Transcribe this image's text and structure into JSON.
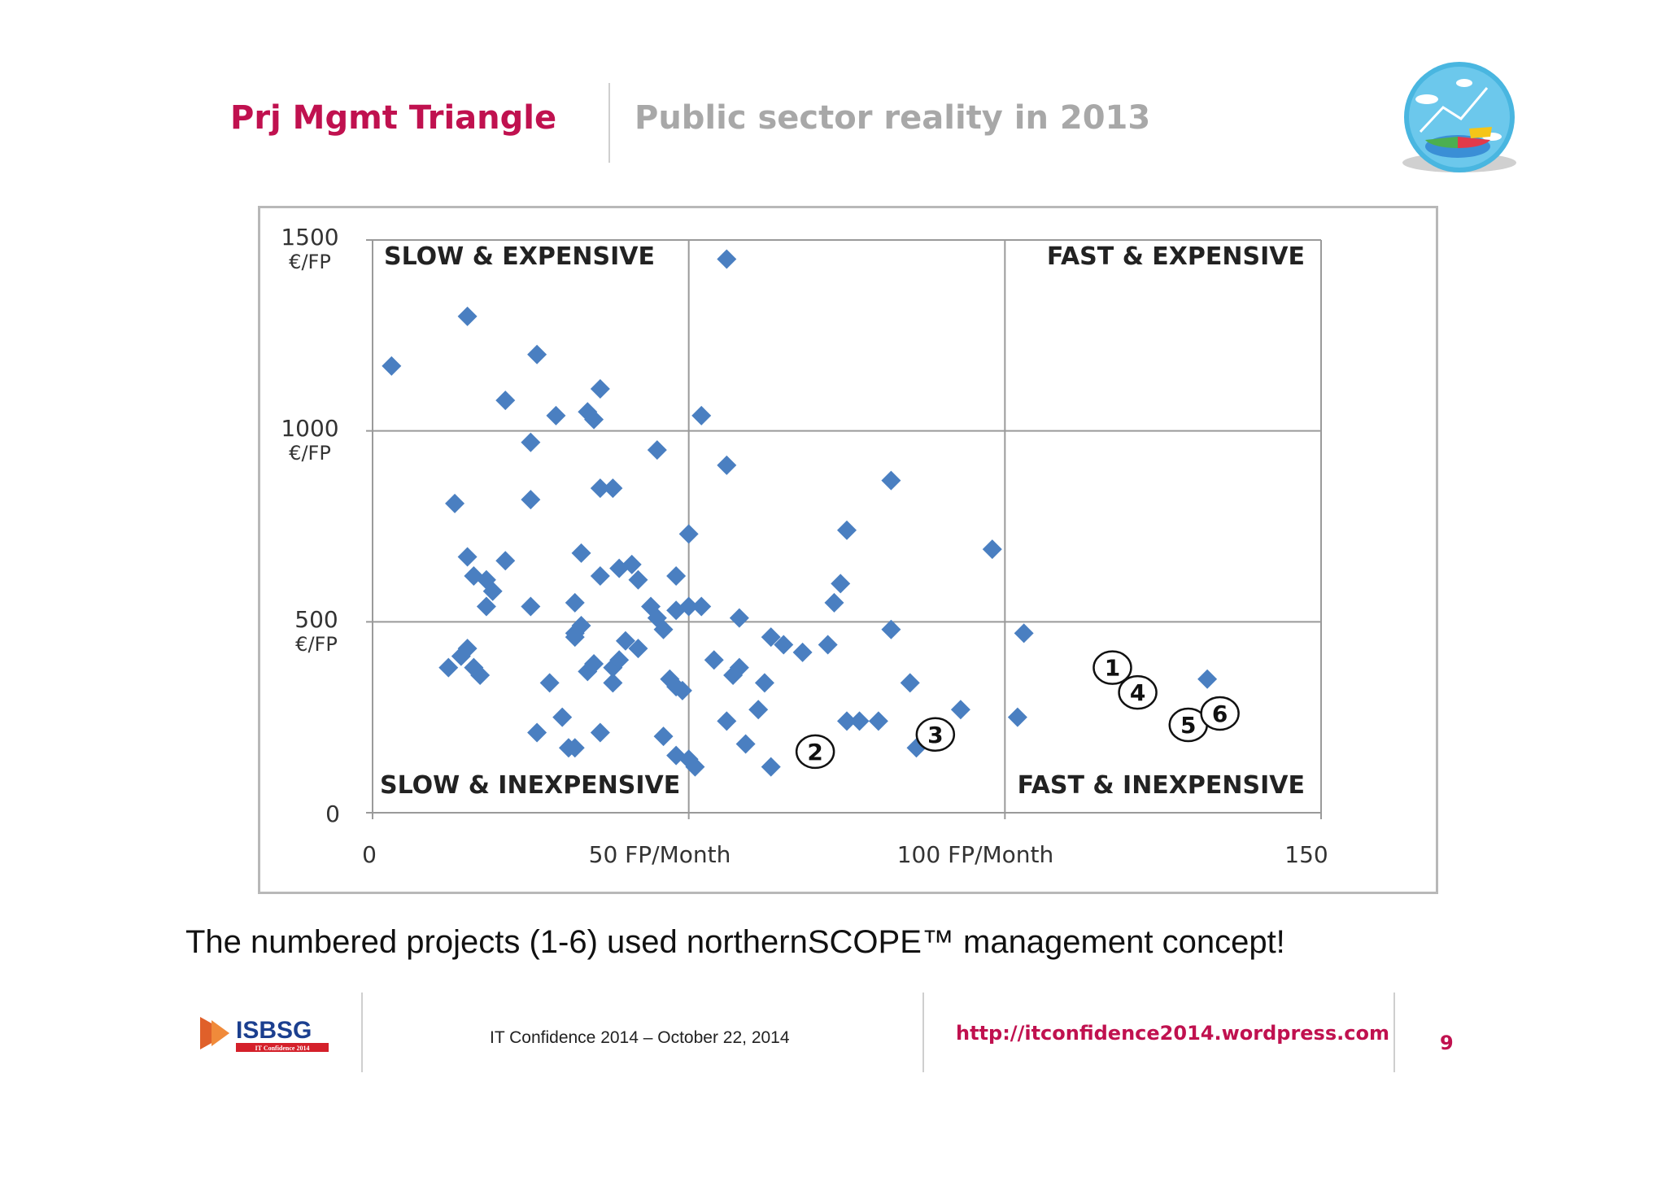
{
  "header": {
    "title": "Prj Mgmt Triangle",
    "subtitle": "Public sector reality in 2013"
  },
  "caption": "The numbered projects (1-6) used northernSCOPE™ management concept!",
  "footer": {
    "logo_text": "ISBSG",
    "logo_subtext": "IT Confidence 2014",
    "event": "IT Confidence 2014 – October 22, 2014",
    "url": "http://itconfidence2014.wordpress.com",
    "page_number": "9"
  },
  "colors": {
    "title": "#c0114f",
    "subtitle": "#a8a8a8",
    "points": "#4a7fc1",
    "grid": "#9a9a9a"
  },
  "chart_data": {
    "type": "scatter",
    "xlim": [
      0,
      150
    ],
    "ylim": [
      0,
      1500
    ],
    "grid": true,
    "x_ticks": [
      {
        "value": 0,
        "label": "0"
      },
      {
        "value": 50,
        "label": "50 FP/Month"
      },
      {
        "value": 100,
        "label": "100 FP/Month"
      },
      {
        "value": 150,
        "label": "150"
      }
    ],
    "y_ticks": [
      {
        "value": 0,
        "label": "0",
        "unit": ""
      },
      {
        "value": 500,
        "label": "500",
        "unit": "€/FP"
      },
      {
        "value": 1000,
        "label": "1000",
        "unit": "€/FP"
      },
      {
        "value": 1500,
        "label": "1500",
        "unit": "€/FP"
      }
    ],
    "quadrants": {
      "top_left": "SLOW & EXPENSIVE",
      "top_right": "FAST & EXPENSIVE",
      "bottom_left": "SLOW & INEXPENSIVE",
      "bottom_right": "FAST & INEXPENSIVE"
    },
    "points": [
      [
        3,
        1170
      ],
      [
        15,
        1300
      ],
      [
        26,
        1200
      ],
      [
        21,
        1080
      ],
      [
        29,
        1040
      ],
      [
        34,
        1050
      ],
      [
        35,
        1030
      ],
      [
        36,
        1110
      ],
      [
        52,
        1040
      ],
      [
        56,
        1450
      ],
      [
        25,
        970
      ],
      [
        45,
        950
      ],
      [
        56,
        910
      ],
      [
        36,
        850
      ],
      [
        38,
        850
      ],
      [
        82,
        870
      ],
      [
        13,
        810
      ],
      [
        25,
        820
      ],
      [
        50,
        730
      ],
      [
        75,
        740
      ],
      [
        98,
        690
      ],
      [
        33,
        680
      ],
      [
        15,
        670
      ],
      [
        21,
        660
      ],
      [
        16,
        620
      ],
      [
        18,
        610
      ],
      [
        19,
        580
      ],
      [
        18,
        540
      ],
      [
        25,
        540
      ],
      [
        32,
        550
      ],
      [
        36,
        620
      ],
      [
        39,
        640
      ],
      [
        41,
        650
      ],
      [
        42,
        610
      ],
      [
        44,
        540
      ],
      [
        45,
        510
      ],
      [
        46,
        480
      ],
      [
        48,
        620
      ],
      [
        48,
        530
      ],
      [
        50,
        540
      ],
      [
        52,
        540
      ],
      [
        58,
        510
      ],
      [
        74,
        600
      ],
      [
        73,
        550
      ],
      [
        33,
        490
      ],
      [
        32,
        460
      ],
      [
        32,
        470
      ],
      [
        14,
        410
      ],
      [
        15,
        430
      ],
      [
        12,
        380
      ],
      [
        16,
        380
      ],
      [
        17,
        360
      ],
      [
        35,
        390
      ],
      [
        34,
        370
      ],
      [
        38,
        380
      ],
      [
        39,
        400
      ],
      [
        40,
        450
      ],
      [
        42,
        430
      ],
      [
        38,
        340
      ],
      [
        28,
        340
      ],
      [
        47,
        350
      ],
      [
        48,
        330
      ],
      [
        49,
        320
      ],
      [
        57,
        360
      ],
      [
        58,
        380
      ],
      [
        62,
        340
      ],
      [
        54,
        400
      ],
      [
        63,
        460
      ],
      [
        65,
        440
      ],
      [
        68,
        420
      ],
      [
        72,
        440
      ],
      [
        82,
        480
      ],
      [
        85,
        340
      ],
      [
        103,
        470
      ],
      [
        26,
        210
      ],
      [
        30,
        250
      ],
      [
        31,
        170
      ],
      [
        32,
        170
      ],
      [
        36,
        210
      ],
      [
        46,
        200
      ],
      [
        48,
        150
      ],
      [
        50,
        140
      ],
      [
        51,
        120
      ],
      [
        56,
        240
      ],
      [
        59,
        180
      ],
      [
        61,
        270
      ],
      [
        63,
        120
      ],
      [
        75,
        240
      ],
      [
        77,
        240
      ],
      [
        80,
        240
      ],
      [
        86,
        170
      ],
      [
        93,
        270
      ],
      [
        102,
        250
      ],
      [
        132,
        350
      ]
    ],
    "labeled_points": [
      {
        "label": "1",
        "x": 117,
        "y": 380
      },
      {
        "label": "2",
        "x": 70,
        "y": 160
      },
      {
        "label": "3",
        "x": 89,
        "y": 205
      },
      {
        "label": "4",
        "x": 121,
        "y": 315
      },
      {
        "label": "5",
        "x": 129,
        "y": 230
      },
      {
        "label": "6",
        "x": 134,
        "y": 260
      }
    ]
  }
}
